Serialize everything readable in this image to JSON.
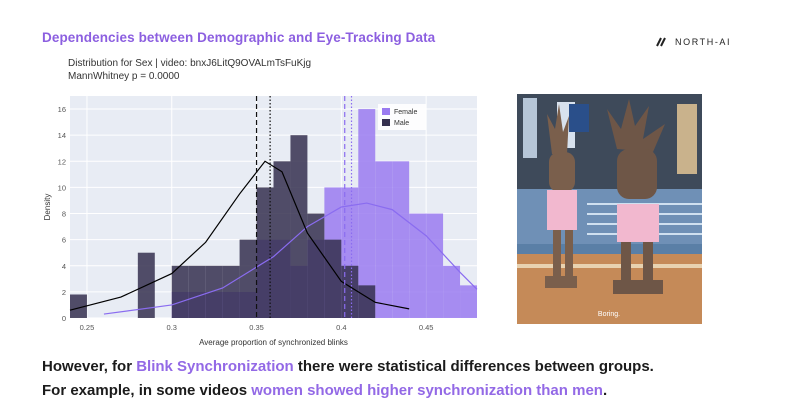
{
  "slide": {
    "title": "Dependencies between Demographic and Eye-Tracking Data",
    "brand": "NORTH-AI"
  },
  "chart_header": {
    "line1": "Distribution for Sex | video: bnxJ6LitQ9OVALmTsFuKjg",
    "line2": "MannWhitney p = 0.0000"
  },
  "chart_data": {
    "type": "bar",
    "xlabel": "Average proportion of synchronized blinks",
    "ylabel": "Density",
    "xlim": [
      0.24,
      0.48
    ],
    "ylim": [
      0,
      17
    ],
    "xticks": [
      0.25,
      0.3,
      0.35,
      0.4,
      0.45
    ],
    "xtick_labels": [
      "0.25",
      "0.3",
      "0.35",
      "0.4",
      "0.45"
    ],
    "yticks": [
      0,
      2,
      4,
      6,
      8,
      10,
      12,
      14,
      16
    ],
    "bin_edges": [
      0.24,
      0.25,
      0.26,
      0.27,
      0.28,
      0.29,
      0.3,
      0.31,
      0.32,
      0.33,
      0.34,
      0.35,
      0.36,
      0.37,
      0.38,
      0.39,
      0.4,
      0.41,
      0.42,
      0.43,
      0.44,
      0.45,
      0.46,
      0.47,
      0.48
    ],
    "series": [
      {
        "name": "Female",
        "color": "#9a7bf0",
        "values": [
          0,
          0,
          0,
          0,
          0,
          0,
          2,
          2,
          2,
          2,
          2,
          6,
          6,
          4,
          6,
          10,
          10,
          16,
          12,
          12,
          8,
          8,
          4,
          2.5
        ]
      },
      {
        "name": "Male",
        "color": "#35304f",
        "values": [
          1.8,
          0,
          0,
          0,
          5,
          0,
          4,
          4,
          4,
          4,
          6,
          10,
          12,
          14,
          8,
          6,
          4,
          2.5,
          0,
          0,
          0,
          0,
          0,
          0
        ]
      }
    ],
    "kde": [
      {
        "name": "Female",
        "x": [
          0.26,
          0.3,
          0.33,
          0.36,
          0.38,
          0.4,
          0.415,
          0.43,
          0.45,
          0.47,
          0.48
        ],
        "y": [
          0.3,
          1.0,
          2.3,
          4.7,
          7.0,
          8.5,
          8.8,
          8.3,
          6.3,
          3.5,
          2.2
        ]
      },
      {
        "name": "Male",
        "x": [
          0.24,
          0.27,
          0.3,
          0.32,
          0.34,
          0.355,
          0.365,
          0.38,
          0.4,
          0.42,
          0.44
        ],
        "y": [
          0.6,
          1.6,
          3.4,
          5.8,
          9.5,
          12.0,
          11.2,
          6.5,
          2.8,
          1.2,
          0.7
        ]
      }
    ],
    "vlines": [
      {
        "x": 0.35,
        "style": "dashed",
        "color": "#111111"
      },
      {
        "x": 0.358,
        "style": "dotted",
        "color": "#111111"
      },
      {
        "x": 0.402,
        "style": "dashed",
        "color": "#8b6cf0"
      },
      {
        "x": 0.406,
        "style": "dotted",
        "color": "#8b6cf0"
      }
    ],
    "grid": true,
    "legend": {
      "position": "top-right",
      "entries": [
        "Female",
        "Male"
      ]
    }
  },
  "photo": {
    "subtitle": "Boring."
  },
  "caption": {
    "line1_pre": "However, for ",
    "line1_hl": "Blink Synchronization",
    "line1_post": " there were statistical differences between groups.",
    "line2_pre": "For example, in some videos ",
    "line2_hl": "women showed higher synchronization than men",
    "line2_post": "."
  }
}
